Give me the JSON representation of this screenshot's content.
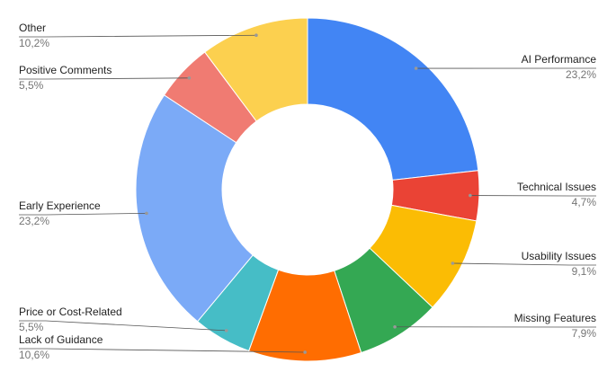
{
  "chart_data": {
    "type": "donut",
    "categories": [
      "AI Performance",
      "Technical Issues",
      "Usability Issues",
      "Missing Features",
      "Lack of Guidance",
      "Price or Cost-Related",
      "Early Experience",
      "Positive Comments",
      "Other"
    ],
    "values": [
      23.2,
      4.7,
      9.1,
      7.9,
      10.6,
      5.5,
      23.2,
      5.5,
      10.2
    ],
    "value_labels": [
      "23,2%",
      "4,7%",
      "9,1%",
      "7,9%",
      "10,6%",
      "5,5%",
      "23,2%",
      "5,5%",
      "10,2%"
    ],
    "colors": [
      "#4285f4",
      "#ea4335",
      "#fbbc04",
      "#34a853",
      "#ff6d01",
      "#46bdc6",
      "#7baaf7",
      "#f07b72",
      "#fcd04f"
    ]
  }
}
